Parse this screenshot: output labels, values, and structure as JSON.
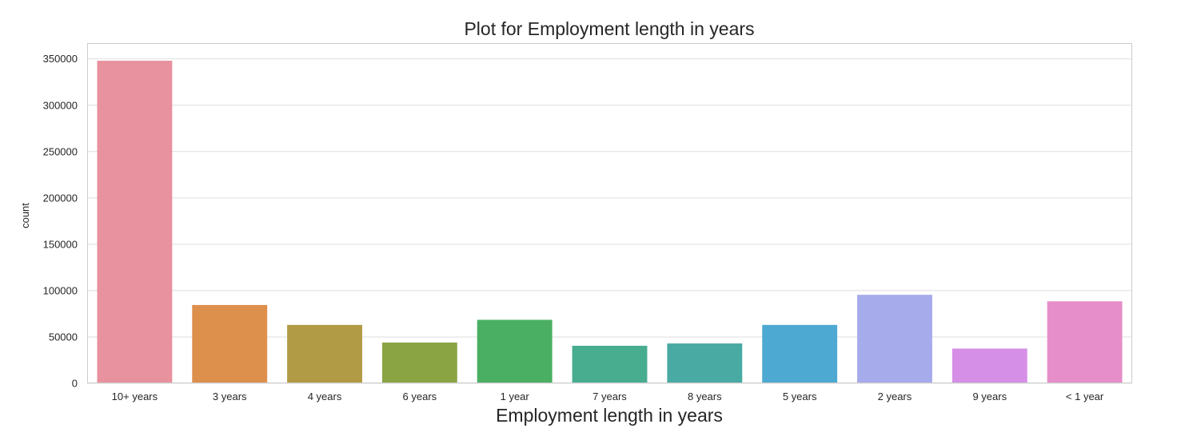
{
  "chart_data": {
    "type": "bar",
    "title": "Plot for Employment length in years",
    "xlabel": "Employment length in years",
    "ylabel": "count",
    "categories": [
      "10+ years",
      "3 years",
      "4 years",
      "6 years",
      "1 year",
      "7 years",
      "8 years",
      "5 years",
      "2 years",
      "9 years",
      "< 1 year"
    ],
    "values": [
      348000,
      84500,
      63000,
      44000,
      68500,
      40500,
      43000,
      63000,
      95500,
      37500,
      88500
    ],
    "colors": [
      "#e8919f",
      "#dd8f4c",
      "#b29b45",
      "#8aa444",
      "#4aaf62",
      "#48ad8e",
      "#49aaa3",
      "#4ea9d2",
      "#a6abeb",
      "#d68fe6",
      "#e68ec9"
    ],
    "yticks": [
      0,
      50000,
      100000,
      150000,
      200000,
      250000,
      300000,
      350000
    ],
    "ytick_labels": [
      "0",
      "50000",
      "100000",
      "150000",
      "200000",
      "250000",
      "300000",
      "350000"
    ],
    "ylim": [
      0,
      367000
    ],
    "grid": true,
    "gridColor": "#dddddd",
    "frameColor": "#cccccc"
  }
}
